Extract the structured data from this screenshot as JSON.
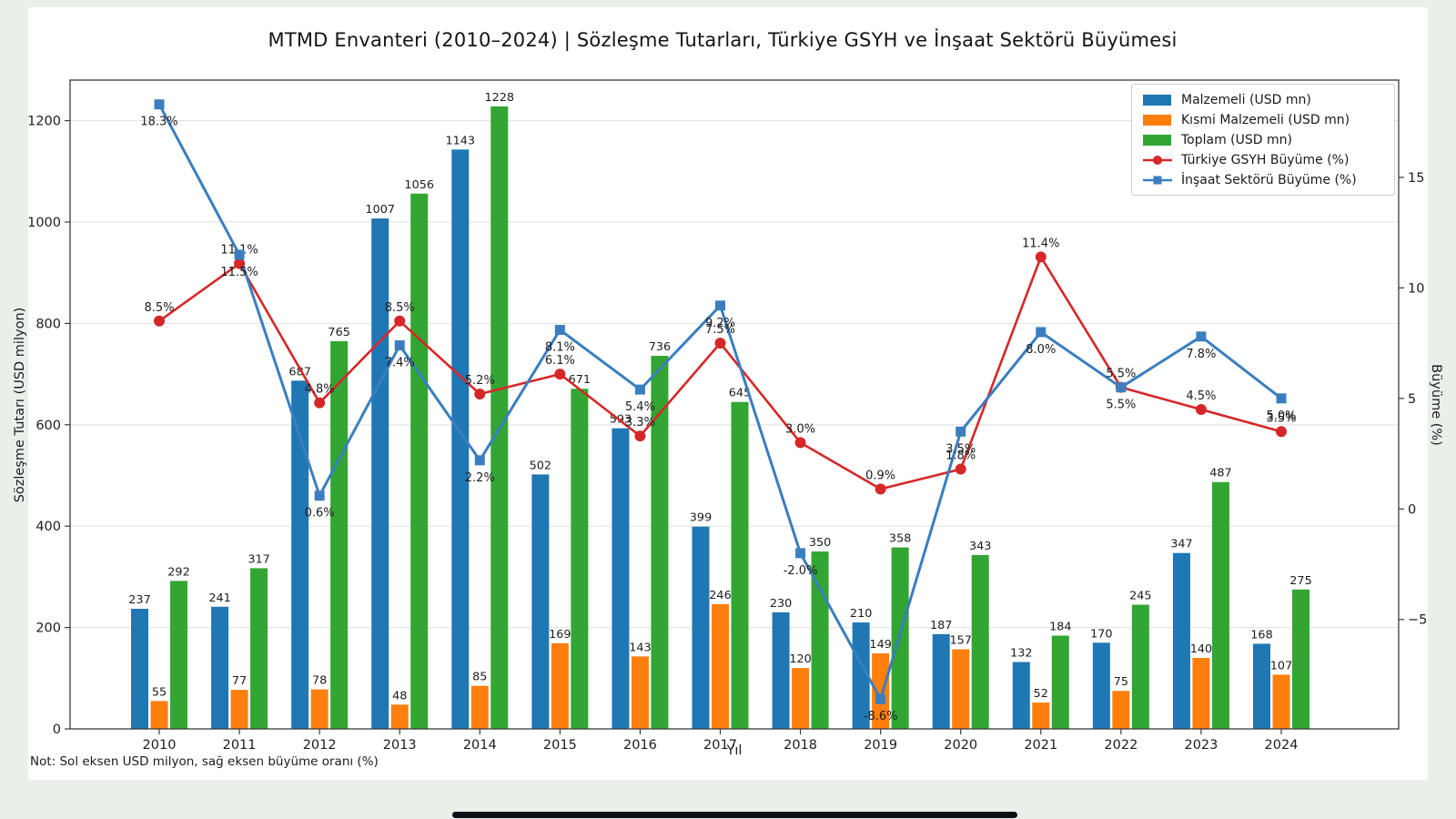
{
  "note": "Not: Sol eksen USD milyon, sağ eksen büyüme oranı (%)",
  "colors": {
    "background": "#e9efe9",
    "card": "#ffffff",
    "grid": "#e3e3e3",
    "spine": "#3a3a3a",
    "text": "#1c1c1c"
  },
  "chart_data": {
    "type": "bar",
    "subtype": "grouped-bars-with-lines",
    "title": "MTMD Envanteri (2010–2024) | Sözleşme Tutarları, Türkiye GSYH ve İnşaat Sektörü Büyümesi",
    "categories": [
      "2010",
      "2011",
      "2012",
      "2013",
      "2014",
      "2015",
      "2016",
      "2017",
      "2018",
      "2019",
      "2020",
      "2021",
      "2022",
      "2023",
      "2024"
    ],
    "series": [
      {
        "name": "Malzemeli (USD mn)",
        "kind": "bar",
        "axis": "left",
        "color": "#1f77b4",
        "values": [
          237,
          241,
          687,
          1007,
          1143,
          502,
          593,
          399,
          230,
          210,
          187,
          132,
          170,
          347,
          168
        ]
      },
      {
        "name": "Kısmi Malzemeli (USD mn)",
        "kind": "bar",
        "axis": "left",
        "color": "#ff7f0e",
        "values": [
          55,
          77,
          78,
          48,
          85,
          169,
          143,
          246,
          120,
          149,
          157,
          52,
          75,
          140,
          107
        ]
      },
      {
        "name": "Toplam (USD mn)",
        "kind": "bar",
        "axis": "left",
        "color": "#32a532",
        "values": [
          292,
          317,
          765,
          1056,
          1228,
          671,
          736,
          645,
          350,
          358,
          343,
          184,
          245,
          487,
          275
        ]
      },
      {
        "name": "Türkiye GSYH Büyüme (%)",
        "kind": "line",
        "axis": "right",
        "color": "#d62728",
        "marker": "circle",
        "values": [
          8.5,
          11.1,
          4.8,
          8.5,
          5.2,
          6.1,
          3.3,
          7.5,
          3.0,
          0.9,
          1.8,
          11.4,
          5.5,
          4.5,
          3.5
        ]
      },
      {
        "name": "İnşaat Sektörü Büyüme (%)",
        "kind": "line",
        "axis": "right",
        "color": "#3a7ebf",
        "marker": "square",
        "values": [
          18.3,
          11.5,
          0.6,
          7.4,
          2.2,
          8.1,
          5.4,
          9.2,
          -2.0,
          -8.6,
          3.5,
          8.0,
          5.5,
          7.8,
          5.0
        ]
      }
    ],
    "xlabel": "Yıl",
    "ylabel_left": "Sözleşme Tutarı (USD milyon)",
    "ylabel_right": "Büyüme (%)",
    "yticks_left": [
      0,
      200,
      400,
      600,
      800,
      1000,
      1200
    ],
    "yticks_right": [
      -5,
      0,
      5,
      10,
      15
    ],
    "ylim_left": [
      0,
      1280
    ],
    "ylim_right": [
      -9.95,
      19.4
    ],
    "grid": "horizontal",
    "legend_position": "upper right",
    "value_labels": true
  }
}
